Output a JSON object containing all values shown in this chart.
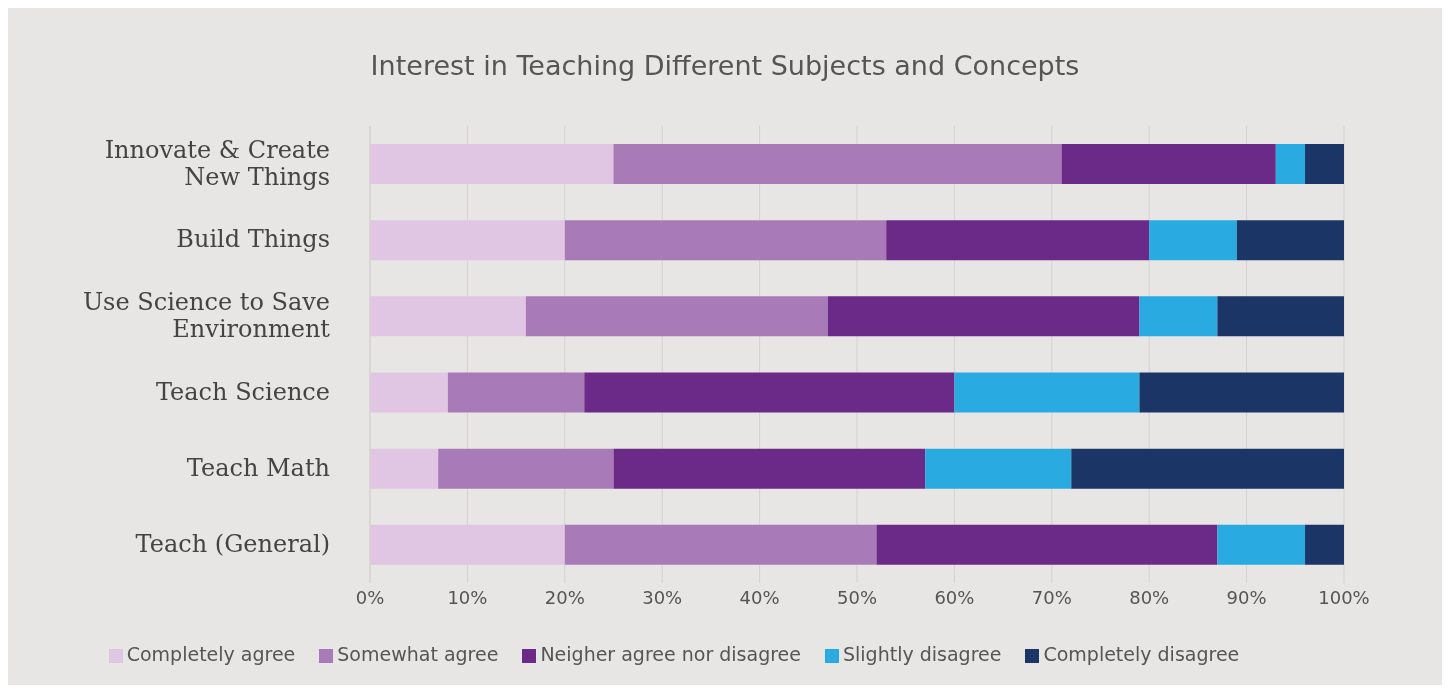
{
  "chart_data": {
    "type": "bar",
    "orientation": "horizontal",
    "stacked": true,
    "title": "Interest in Teaching Different Subjects and Concepts",
    "categories": [
      "Innovate & Create New Things",
      "Build Things",
      "Use Science to Save Environment",
      "Teach Science",
      "Teach Math",
      "Teach (General)"
    ],
    "series": [
      {
        "name": "Completely agree",
        "color": "#e0c6e2",
        "values": [
          25,
          20,
          16,
          8,
          7,
          20
        ]
      },
      {
        "name": "Somewhat agree",
        "color": "#a87bb8",
        "values": [
          46,
          33,
          31,
          14,
          18,
          32
        ]
      },
      {
        "name": "Neigher agree nor disagree",
        "color": "#6c2a88",
        "values": [
          22,
          27,
          32,
          38,
          32,
          35
        ]
      },
      {
        "name": "Slightly disagree",
        "color": "#29abe2",
        "values": [
          3,
          9,
          8,
          19,
          15,
          9
        ]
      },
      {
        "name": "Completely disagree",
        "color": "#1b3666",
        "values": [
          4,
          11,
          13,
          21,
          28,
          4
        ]
      }
    ],
    "xlim": [
      0,
      100
    ],
    "xticks": [
      {
        "value": 0,
        "label": "0%"
      },
      {
        "value": 10,
        "label": "10%"
      },
      {
        "value": 20,
        "label": "20%"
      },
      {
        "value": 30,
        "label": "30%"
      },
      {
        "value": 40,
        "label": "40%"
      },
      {
        "value": 50,
        "label": "50%"
      },
      {
        "value": 60,
        "label": "60%"
      },
      {
        "value": 70,
        "label": "70%"
      },
      {
        "value": 80,
        "label": "80%"
      },
      {
        "value": 90,
        "label": "90%"
      },
      {
        "value": 100,
        "label": "100%"
      }
    ],
    "grid": "x",
    "legend": "bottom"
  }
}
